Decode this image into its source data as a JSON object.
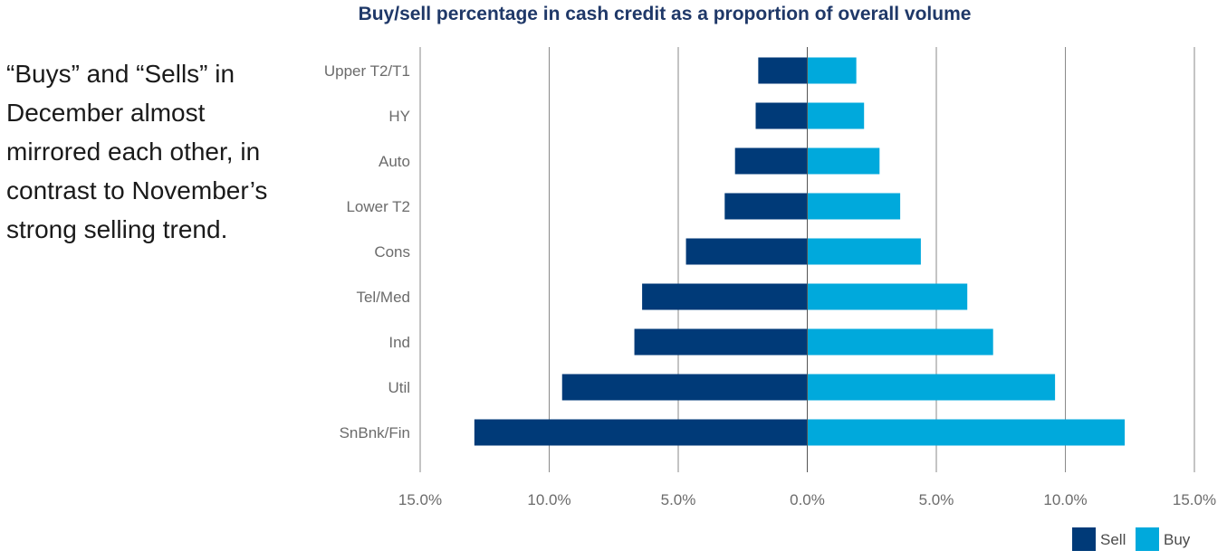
{
  "side_note": "“Buys” and “Sells” in December almost mirrored each other, in contrast to November’s strong selling trend.",
  "chart_data": {
    "type": "bar",
    "orientation": "horizontal-diverging",
    "title": "Buy/sell percentage in cash credit as a proportion of overall volume",
    "categories": [
      "Upper T2/T1",
      "HY",
      "Auto",
      "Lower T2",
      "Cons",
      "Tel/Med",
      "Ind",
      "Util",
      "SnBnk/Fin"
    ],
    "series": [
      {
        "name": "Sell",
        "color": "#003a78",
        "values": [
          1.9,
          2.0,
          2.8,
          3.2,
          4.7,
          6.4,
          6.7,
          9.5,
          12.9
        ]
      },
      {
        "name": "Buy",
        "color": "#00a9dc",
        "values": [
          1.9,
          2.2,
          2.8,
          3.6,
          4.4,
          6.2,
          7.2,
          9.6,
          12.3
        ]
      }
    ],
    "xlim": [
      -15,
      15
    ],
    "xticks": [
      -15,
      -10,
      -5,
      0,
      5,
      10,
      15
    ],
    "xtick_labels": [
      "15.0%",
      "10.0%",
      "5.0%",
      "0.0%",
      "5.0%",
      "10.0%",
      "15.0%"
    ],
    "grid": "vertical",
    "legend": "bottom-right"
  }
}
